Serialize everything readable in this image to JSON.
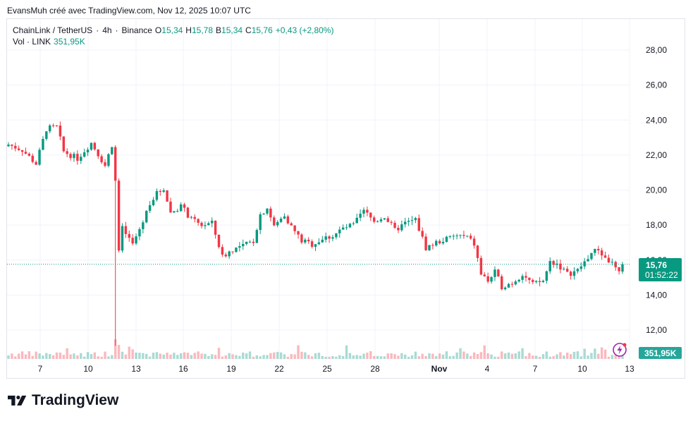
{
  "header": {
    "author_line": "EvansMuh créé avec TradingView.com, Nov 12, 2025 10:07 UTC"
  },
  "legend": {
    "symbol": "ChainLink / TetherUS",
    "interval": "4h",
    "exchange": "Binance",
    "o_label": "O",
    "o": "15,34",
    "h_label": "H",
    "h": "15,78",
    "b_label": "B",
    "b": "15,34",
    "c_label": "C",
    "c": "15,76",
    "change": "+0,43 (+2,80%)",
    "vol_label": "Vol · LINK",
    "vol": "351,95K",
    "sep": "·"
  },
  "price_badge": {
    "price": "15,76",
    "countdown": "01:52:22"
  },
  "volume_badge": "351,95K",
  "brand": {
    "name": "TradingView"
  },
  "colors": {
    "up": "#089981",
    "down": "#f23645",
    "grid": "#f0f3fa",
    "last": "#089981"
  },
  "chart_data": {
    "type": "candlestick",
    "ylim": [
      11,
      29
    ],
    "y_ticks": [
      "12,00",
      "14,00",
      "16,00",
      "18,00",
      "20,00",
      "22,00",
      "24,00",
      "26,00",
      "28,00"
    ],
    "x_ticks": [
      "7",
      "10",
      "13",
      "16",
      "19",
      "22",
      "25",
      "28",
      "Nov",
      "4",
      "7",
      "10",
      "13"
    ],
    "last_price": 15.76,
    "close_path": [
      [
        0,
        22.6
      ],
      [
        4,
        22.3
      ],
      [
        8,
        21.5
      ],
      [
        11,
        23.5
      ],
      [
        14,
        23.6
      ],
      [
        16,
        22.2
      ],
      [
        20,
        21.8
      ],
      [
        24,
        22.7
      ],
      [
        28,
        21.4
      ],
      [
        30,
        22.6
      ],
      [
        31,
        20.5
      ],
      [
        32,
        16.4
      ],
      [
        33,
        17.8
      ],
      [
        36,
        16.9
      ],
      [
        39,
        18.2
      ],
      [
        41,
        19.3
      ],
      [
        43,
        19.8
      ],
      [
        45,
        20.1
      ],
      [
        47,
        18.7
      ],
      [
        50,
        19.1
      ],
      [
        53,
        18.3
      ],
      [
        56,
        18.0
      ],
      [
        59,
        18.1
      ],
      [
        62,
        16.2
      ],
      [
        65,
        16.6
      ],
      [
        68,
        16.8
      ],
      [
        71,
        17.1
      ],
      [
        73,
        18.6
      ],
      [
        75,
        19.0
      ],
      [
        77,
        17.9
      ],
      [
        80,
        18.6
      ],
      [
        82,
        17.9
      ],
      [
        85,
        17.1
      ],
      [
        88,
        16.9
      ],
      [
        91,
        17.2
      ],
      [
        94,
        17.4
      ],
      [
        97,
        17.8
      ],
      [
        100,
        18.0
      ],
      [
        103,
        18.8
      ],
      [
        106,
        18.2
      ],
      [
        109,
        18.5
      ],
      [
        112,
        17.7
      ],
      [
        115,
        18.1
      ],
      [
        118,
        18.3
      ],
      [
        121,
        16.7
      ],
      [
        124,
        17.0
      ],
      [
        127,
        17.2
      ],
      [
        130,
        17.4
      ],
      [
        133,
        17.3
      ],
      [
        135,
        16.9
      ],
      [
        137,
        15.2
      ],
      [
        139,
        14.8
      ],
      [
        141,
        15.3
      ],
      [
        143,
        14.5
      ],
      [
        146,
        14.7
      ],
      [
        149,
        15.2
      ],
      [
        152,
        14.6
      ],
      [
        155,
        14.8
      ],
      [
        157,
        15.9
      ],
      [
        159,
        15.8
      ],
      [
        162,
        15.2
      ],
      [
        165,
        15.4
      ],
      [
        167,
        15.9
      ],
      [
        169,
        16.4
      ],
      [
        171,
        16.6
      ],
      [
        173,
        16.1
      ],
      [
        175,
        15.8
      ],
      [
        177,
        15.2
      ],
      [
        178,
        15.76
      ]
    ],
    "spikes": [
      [
        31,
        11.1
      ],
      [
        32,
        16.9
      ]
    ]
  }
}
